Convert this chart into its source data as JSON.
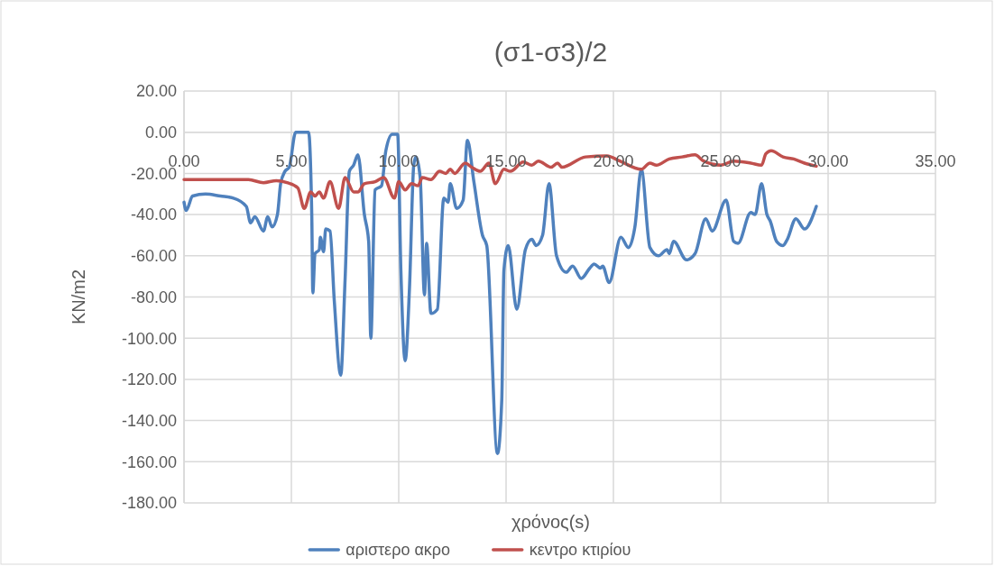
{
  "chart_data": {
    "type": "line",
    "title": "(σ1-σ3)/2",
    "xlabel": "χρόνος(s)",
    "ylabel": "KN/m2",
    "xlim": [
      0,
      35
    ],
    "ylim": [
      -180,
      20
    ],
    "xticks": [
      {
        "value": 0,
        "label": "0.00"
      },
      {
        "value": 5,
        "label": "5.00"
      },
      {
        "value": 10,
        "label": "10.00"
      },
      {
        "value": 15,
        "label": "15.00"
      },
      {
        "value": 20,
        "label": "20.00"
      },
      {
        "value": 25,
        "label": "25.00"
      },
      {
        "value": 30,
        "label": "30.00"
      },
      {
        "value": 35,
        "label": "35.00"
      }
    ],
    "yticks": [
      {
        "value": 20,
        "label": "20.00"
      },
      {
        "value": 0,
        "label": "0.00"
      },
      {
        "value": -20,
        "label": "-20.00"
      },
      {
        "value": -40,
        "label": "-40.00"
      },
      {
        "value": -60,
        "label": "-60.00"
      },
      {
        "value": -80,
        "label": "-80.00"
      },
      {
        "value": -100,
        "label": "-100.00"
      },
      {
        "value": -120,
        "label": "-120.00"
      },
      {
        "value": -140,
        "label": "-140.00"
      },
      {
        "value": -160,
        "label": "-160.00"
      },
      {
        "value": -180,
        "label": "-180.00"
      }
    ],
    "grid": true,
    "legend": "bottom",
    "marker": "none",
    "line_style": "solid",
    "series": [
      {
        "name": "αριστερο ακρο",
        "color": "#4f81bd",
        "x": [
          0,
          0.1,
          0.4,
          1.0,
          1.7,
          2.3,
          2.9,
          3.1,
          3.3,
          3.7,
          3.9,
          4.1,
          4.35,
          4.5,
          4.7,
          4.9,
          5.2,
          5.8,
          5.95,
          6.0,
          6.1,
          6.3,
          6.35,
          6.5,
          6.6,
          6.8,
          7.0,
          7.3,
          7.5,
          7.7,
          7.9,
          8.1,
          8.4,
          8.6,
          8.7,
          8.9,
          9.2,
          9.4,
          9.7,
          9.95,
          10.1,
          10.3,
          10.5,
          10.7,
          10.8,
          11.0,
          11.2,
          11.3,
          11.5,
          11.8,
          12.1,
          12.3,
          12.4,
          12.7,
          13.0,
          13.2,
          13.5,
          13.9,
          14.1,
          14.6,
          14.8,
          14.9,
          15.1,
          15.5,
          15.9,
          16.2,
          16.4,
          16.7,
          17.0,
          17.35,
          17.8,
          18.1,
          18.5,
          18.9,
          19.1,
          19.4,
          19.5,
          19.8,
          20.35,
          20.7,
          21.0,
          21.3,
          21.7,
          22.1,
          22.5,
          22.6,
          22.8,
          23.4,
          23.8,
          24.3,
          24.6,
          25.25,
          25.6,
          25.8,
          26.4,
          26.6,
          26.9,
          27.15,
          27.3,
          27.6,
          27.9,
          28.1,
          28.5,
          28.9,
          29.45
        ],
        "values": [
          -34,
          -38,
          -31,
          -30,
          -31,
          -32,
          -36,
          -44,
          -41,
          -48,
          -41,
          -46,
          -40,
          -25,
          -19,
          -17,
          0,
          0,
          -40,
          -78,
          -59,
          -57,
          -51,
          -58,
          -47,
          -48,
          -82,
          -118,
          -72,
          -19,
          -16,
          -11,
          -40,
          -53,
          -100,
          -28,
          -26,
          -9,
          -1,
          -1,
          -67,
          -111,
          -76,
          -16,
          -12,
          -22,
          -79,
          -54,
          -88,
          -86,
          -32,
          -34,
          -25,
          -37,
          -33,
          -4,
          -24,
          -50,
          -55,
          -156,
          -130,
          -67,
          -55,
          -86,
          -57,
          -52,
          -55,
          -50,
          -25,
          -60,
          -68,
          -65,
          -71,
          -66,
          -64,
          -66,
          -65,
          -73,
          -51,
          -56,
          -46,
          -18,
          -56,
          -60,
          -57,
          -59,
          -53,
          -62,
          -59,
          -42,
          -48,
          -33,
          -53,
          -54,
          -39,
          -40,
          -25,
          -40,
          -43,
          -53,
          -55,
          -52,
          -42,
          -47,
          -36
        ]
      },
      {
        "name": "κεντρο κτιρίου",
        "color": "#c0504d",
        "x": [
          0,
          1,
          2,
          3,
          3.7,
          4.3,
          4.8,
          5.3,
          5.6,
          5.9,
          6.1,
          6.3,
          6.5,
          6.8,
          7.2,
          7.5,
          7.9,
          8.1,
          8.4,
          8.9,
          9.3,
          9.8,
          10.0,
          10.3,
          10.6,
          10.9,
          11.1,
          11.5,
          11.9,
          12.2,
          12.4,
          12.6,
          13.1,
          13.4,
          13.8,
          14.2,
          14.5,
          14.9,
          15.2,
          15.8,
          16.2,
          16.5,
          17.1,
          17.4,
          17.6,
          18.7,
          19.7,
          20.3,
          21.3,
          21.7,
          22.0,
          22.6,
          23.2,
          23.8,
          24.2,
          25.0,
          25.6,
          26.4,
          26.9,
          27.1,
          27.35,
          27.9,
          28.4,
          28.9,
          29.45
        ],
        "values": [
          -23,
          -23,
          -23,
          -23,
          -24.5,
          -23.5,
          -24.5,
          -27,
          -37,
          -29,
          -31,
          -29,
          -32,
          -24,
          -37,
          -22,
          -29,
          -29,
          -25,
          -24,
          -22,
          -32,
          -24,
          -28,
          -25,
          -26,
          -22,
          -23,
          -19,
          -20,
          -18,
          -20,
          -15,
          -17,
          -19,
          -15,
          -25,
          -18,
          -19,
          -14.5,
          -16,
          -14,
          -17,
          -15,
          -17,
          -12,
          -11.5,
          -14,
          -18,
          -15,
          -16,
          -13,
          -12,
          -11,
          -14,
          -16,
          -14,
          -15,
          -16,
          -10.5,
          -9,
          -12,
          -13,
          -15,
          -16.5
        ]
      }
    ]
  }
}
